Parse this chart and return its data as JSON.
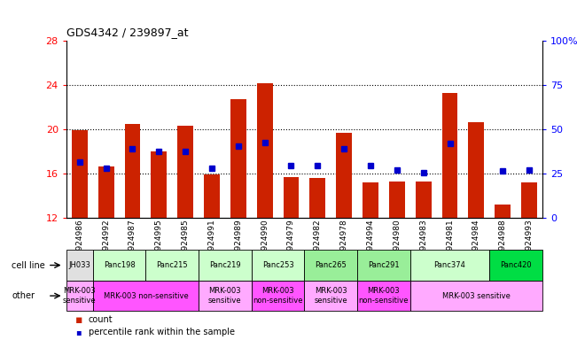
{
  "title": "GDS4342 / 239897_at",
  "samples": [
    "GSM924986",
    "GSM924992",
    "GSM924987",
    "GSM924995",
    "GSM924985",
    "GSM924991",
    "GSM924989",
    "GSM924990",
    "GSM924979",
    "GSM924982",
    "GSM924978",
    "GSM924994",
    "GSM924980",
    "GSM924983",
    "GSM924981",
    "GSM924984",
    "GSM924988",
    "GSM924993"
  ],
  "bar_values": [
    19.9,
    16.6,
    20.5,
    18.0,
    20.3,
    15.9,
    22.7,
    24.2,
    15.7,
    15.6,
    19.7,
    15.2,
    15.3,
    15.3,
    23.3,
    20.6,
    13.2,
    15.2
  ],
  "dot_values": [
    17.0,
    16.5,
    18.2,
    18.0,
    18.0,
    16.5,
    18.5,
    18.8,
    16.7,
    16.7,
    18.2,
    16.7,
    16.3,
    16.1,
    18.7,
    null,
    16.2,
    16.3
  ],
  "ylim_left": [
    12,
    28
  ],
  "ylim_right": [
    0,
    100
  ],
  "yticks_left": [
    12,
    16,
    20,
    24,
    28
  ],
  "yticks_right": [
    0,
    25,
    50,
    75,
    100
  ],
  "bar_color": "#cc2200",
  "dot_color": "#0000cc",
  "cell_lines": [
    {
      "name": "JH033",
      "start": 0,
      "end": 1,
      "color": "#e0e0e0"
    },
    {
      "name": "Panc198",
      "start": 1,
      "end": 3,
      "color": "#ccffcc"
    },
    {
      "name": "Panc215",
      "start": 3,
      "end": 5,
      "color": "#ccffcc"
    },
    {
      "name": "Panc219",
      "start": 5,
      "end": 7,
      "color": "#ccffcc"
    },
    {
      "name": "Panc253",
      "start": 7,
      "end": 9,
      "color": "#ccffcc"
    },
    {
      "name": "Panc265",
      "start": 9,
      "end": 11,
      "color": "#99ee99"
    },
    {
      "name": "Panc291",
      "start": 11,
      "end": 13,
      "color": "#99ee99"
    },
    {
      "name": "Panc374",
      "start": 13,
      "end": 16,
      "color": "#ccffcc"
    },
    {
      "name": "Panc420",
      "start": 16,
      "end": 18,
      "color": "#00dd44"
    }
  ],
  "other_rows": [
    {
      "label": "MRK-003\nsensitive",
      "start": 0,
      "end": 1,
      "color": "#ffaaff"
    },
    {
      "label": "MRK-003 non-sensitive",
      "start": 1,
      "end": 5,
      "color": "#ff55ff"
    },
    {
      "label": "MRK-003\nsensitive",
      "start": 5,
      "end": 7,
      "color": "#ffaaff"
    },
    {
      "label": "MRK-003\nnon-sensitive",
      "start": 7,
      "end": 9,
      "color": "#ff55ff"
    },
    {
      "label": "MRK-003\nsensitive",
      "start": 9,
      "end": 11,
      "color": "#ffaaff"
    },
    {
      "label": "MRK-003\nnon-sensitive",
      "start": 11,
      "end": 13,
      "color": "#ff55ff"
    },
    {
      "label": "MRK-003 sensitive",
      "start": 13,
      "end": 18,
      "color": "#ffaaff"
    }
  ],
  "legend_count_color": "#cc2200",
  "legend_dot_color": "#0000cc",
  "background_color": "#ffffff",
  "grid_yticks": [
    16,
    20,
    24
  ]
}
